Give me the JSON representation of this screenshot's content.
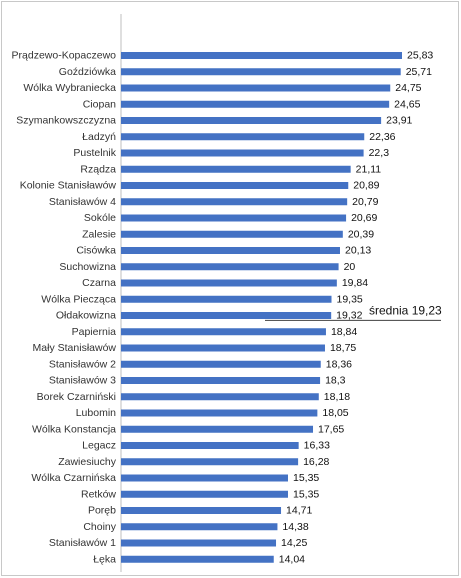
{
  "chart_data": {
    "type": "bar",
    "orientation": "horizontal",
    "categories": [
      "Prądzewo-Kopaczewo",
      "Goździówka",
      "Wólka Wybraniecka",
      "Ciopan",
      "Szymankowszczyzna",
      "Ładzyń",
      "Pustelnik",
      "Rządza",
      "Kolonie Stanisławów",
      "Stanisławów 4",
      "Sokóle",
      "Zalesie",
      "Cisówka",
      "Suchowizna",
      "Czarna",
      "Wólka Piecząca",
      "Ołdakowizna",
      "Papiernia",
      "Mały Stanisławów",
      "Stanisławów 2",
      "Stanisławów 3",
      "Borek Czarniński",
      "Lubomin",
      "Wólka Konstancja",
      "Legacz",
      "Zawiesiuchy",
      "Wólka Czarnińska",
      "Retków",
      "Poręb",
      "Choiny",
      "Stanisławów 1",
      "Łęka"
    ],
    "values": [
      25.83,
      25.71,
      24.75,
      24.65,
      23.91,
      22.36,
      22.3,
      21.11,
      20.89,
      20.79,
      20.69,
      20.39,
      20.13,
      20,
      19.84,
      19.35,
      19.32,
      18.84,
      18.75,
      18.36,
      18.3,
      18.18,
      18.05,
      17.65,
      16.33,
      16.28,
      15.35,
      15.35,
      14.71,
      14.38,
      14.25,
      14.04
    ],
    "value_labels": [
      "25,83",
      "25,71",
      "24,75",
      "24,65",
      "23,91",
      "22,36",
      "22,3",
      "21,11",
      "20,89",
      "20,79",
      "20,69",
      "20,39",
      "20,13",
      "20",
      "19,84",
      "19,35",
      "19,32",
      "18,84",
      "18,75",
      "18,36",
      "18,3",
      "18,18",
      "18,05",
      "17,65",
      "16,33",
      "16,28",
      "15,35",
      "15,35",
      "14,71",
      "14,38",
      "14,25",
      "14,04"
    ],
    "xlim": [
      0,
      27
    ],
    "bar_color": "#4472c4",
    "annotation": {
      "text": "średnia 19,23",
      "value": 19.23
    },
    "grid": false,
    "legend": "none"
  }
}
